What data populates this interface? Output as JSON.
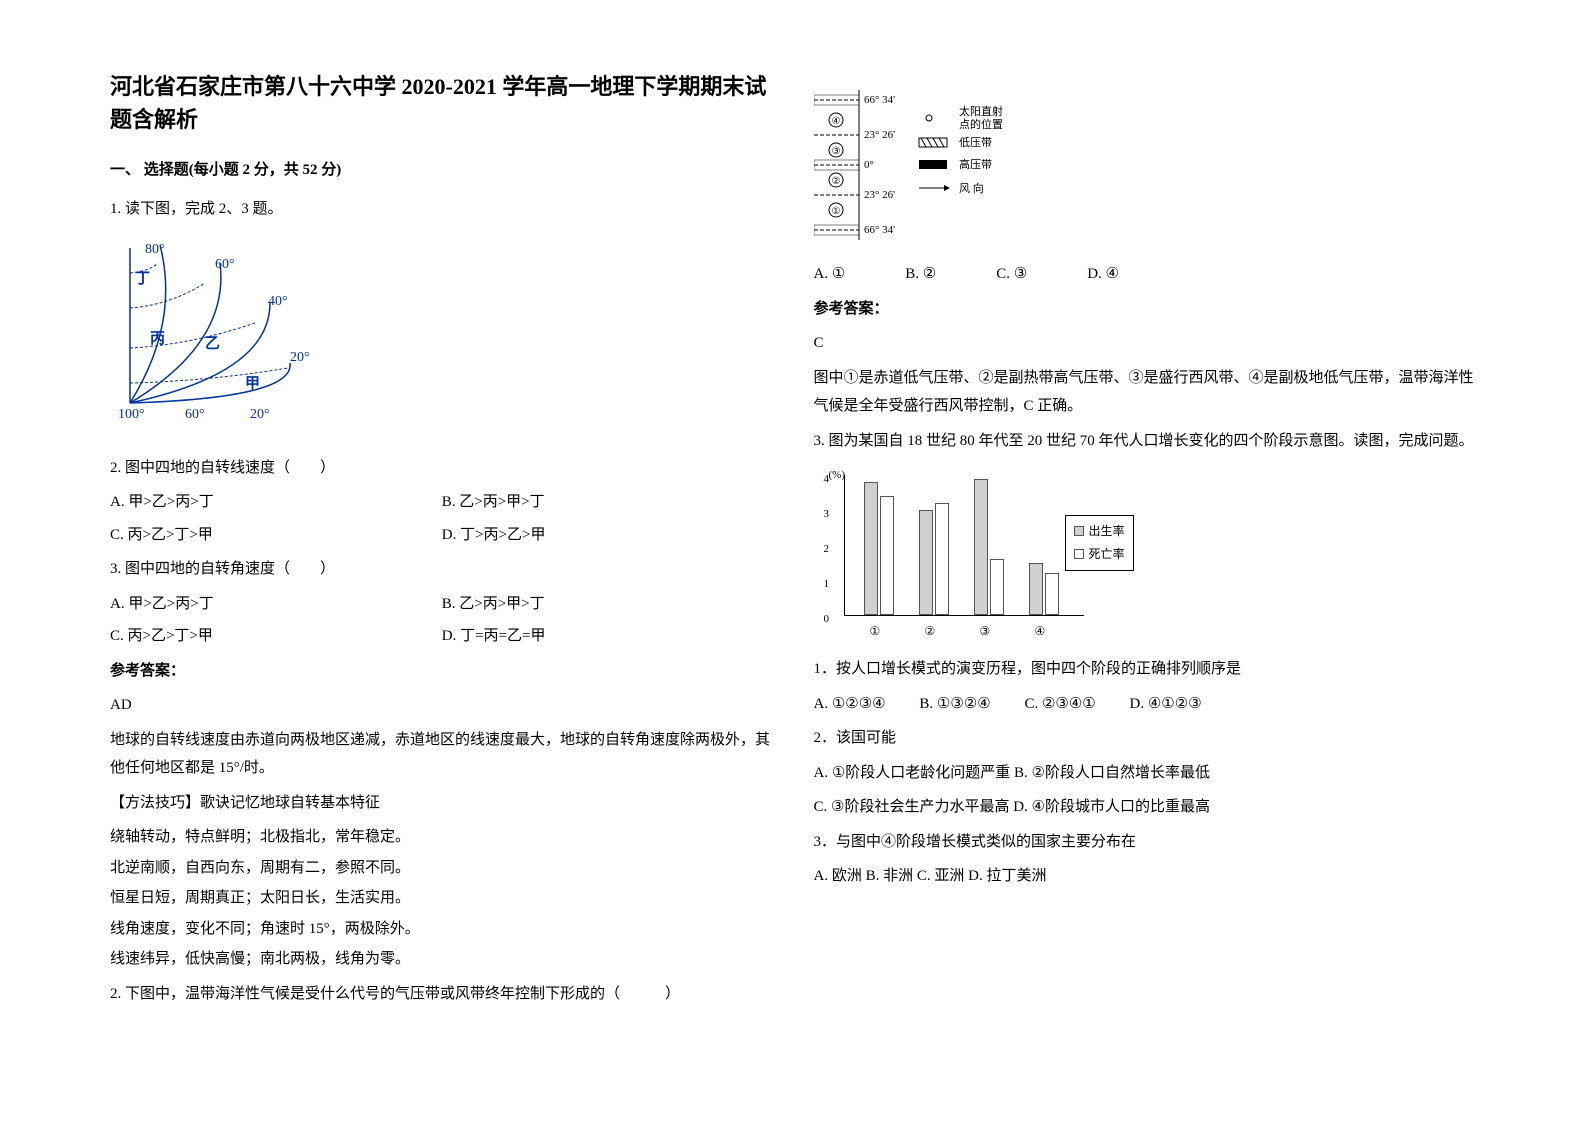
{
  "title": "河北省石家庄市第八十六中学 2020-2021 学年高一地理下学期期末试题含解析",
  "section1_header": "一、 选择题(每小题 2 分，共 52 分)",
  "q1": {
    "stem": "1. 读下图，完成 2、3 题。",
    "diagram": {
      "lon_labels": [
        "100°",
        "60°",
        "20°"
      ],
      "lat_labels": [
        "80°",
        "60°",
        "40°",
        "20°"
      ],
      "points": [
        "丁",
        "丙",
        "乙",
        "甲"
      ]
    },
    "sub2_stem": "2. 图中四地的自转线速度（　　）",
    "sub2_opts": {
      "A": "A. 甲>乙>丙>丁",
      "B": "B. 乙>丙>甲>丁",
      "C": "C. 丙>乙>丁>甲",
      "D": "D. 丁>丙>乙>甲"
    },
    "sub3_stem": "3. 图中四地的自转角速度（　　）",
    "sub3_opts": {
      "A": "A. 甲>乙>丙>丁",
      "B": "B. 乙>丙>甲>丁",
      "C": "C. 丙>乙>丁>甲",
      "D": "D. 丁=丙=乙=甲"
    },
    "answer_label": "参考答案：",
    "answer": "AD",
    "explain": "地球的自转线速度由赤道向两极地区递减，赤道地区的线速度最大，地球的自转角速度除两极外，其他任何地区都是 15°/时。",
    "tip_title": "【方法技巧】歌诀记忆地球自转基本特征",
    "tips": [
      "绕轴转动，特点鲜明；北极指北，常年稳定。",
      "北逆南顺，自西向东，周期有二，参照不同。",
      "恒星日短，周期真正；太阳日长，生活实用。",
      "线角速度，变化不同；角速时 15°，两极除外。",
      "线速纬异，低快高慢；南北两极，线角为零。"
    ]
  },
  "q2": {
    "stem": "2. 下图中，温带海洋性气候是受什么代号的气压带或风带终年控制下形成的（　　　）",
    "diagram": {
      "lat_labels": [
        "66° 34'",
        "23° 26'",
        "0°",
        "23° 26'",
        "66° 34'"
      ],
      "legend": {
        "sun": "太阳直射点的位置",
        "low": "低压带",
        "high": "高压带",
        "wind": "风  向"
      }
    },
    "opts": {
      "A": "A.  ①",
      "B": "B.  ②",
      "C": "C.  ③",
      "D": "D. ④"
    },
    "answer_label": "参考答案：",
    "answer": "C",
    "explain": "图中①是赤道低气压带、②是副热带高气压带、③是盛行西风带、④是副极地低气压带，温带海洋性气候是全年受盛行西风带控制，C 正确。"
  },
  "q3": {
    "stem": "3. 图为某国自 18 世纪 80 年代至 20 世纪 70 年代人口增长变化的四个阶段示意图。读图，完成问题。",
    "chart": {
      "y_unit": "(%)",
      "y_ticks": [
        0,
        1,
        2,
        3,
        4
      ],
      "x_labels": [
        "①",
        "②",
        "③",
        "④"
      ],
      "birth_values": [
        3.8,
        3.0,
        3.9,
        1.5
      ],
      "death_values": [
        3.4,
        3.2,
        1.6,
        1.2
      ],
      "legend_birth": "出生率",
      "legend_death": "死亡率",
      "colors": {
        "birth": "#d0d0d0",
        "death": "#ffffff",
        "axis": "#000000"
      }
    },
    "sub1_stem": "1．按人口增长模式的演变历程，图中四个阶段的正确排列顺序是",
    "sub1_opts": {
      "A": "A. ①②③④",
      "B": "B. ①③②④",
      "C": "C. ②③④①",
      "D": "D. ④①②③"
    },
    "sub2_stem": "2．该国可能",
    "sub2_opts": {
      "A": "A. ①阶段人口老龄化问题严重",
      "B": "B. ②阶段人口自然增长率最低",
      "C": "C. ③阶段社会生产力水平最高",
      "D": "D. ④阶段城市人口的比重最高"
    },
    "sub3_stem": "3．与图中④阶段增长模式类似的国家主要分布在",
    "sub3_opts": {
      "A": "A. 欧洲",
      "B": "B. 非洲",
      "C": "C. 亚洲",
      "D": "D. 拉丁美洲"
    }
  }
}
